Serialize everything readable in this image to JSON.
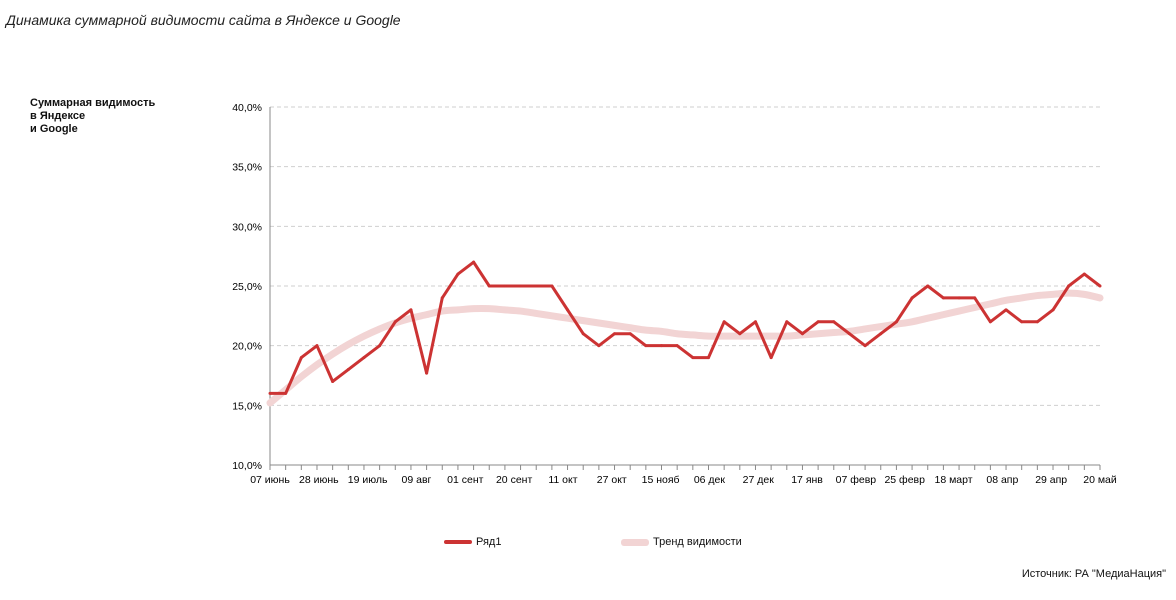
{
  "title": "Динамика суммарной видимости сайта в Яндексе и Google",
  "source": "Источник: РА \"МедиаНация\"",
  "colors": {
    "series": "#cc3333",
    "trend": "#f2d4d4",
    "grid": "#cfcfcf",
    "axis": "#888888"
  },
  "chart_data": {
    "type": "line",
    "ylabel": "Суммарная видимость\nв Яндексе\nи Google",
    "ylim": [
      10,
      40
    ],
    "yticks": [
      10,
      15,
      20,
      25,
      30,
      35,
      40
    ],
    "ytick_labels": [
      "10,0%",
      "15,0%",
      "20,0%",
      "25,0%",
      "30,0%",
      "35,0%",
      "40,0%"
    ],
    "grid": "horizontal dashed",
    "legend_position": "bottom",
    "xtick_labels": [
      "07 июнь",
      "28 июнь",
      "19 июль",
      "09 авг",
      "01 сент",
      "20 сент",
      "11 окт",
      "27 окт",
      "15 нояб",
      "06 дек",
      "27 дек",
      "17 янв",
      "07 февр",
      "25 февр",
      "18 март",
      "08 апр",
      "29 апр",
      "20 май"
    ],
    "series": [
      {
        "name": "Ряд1",
        "values": [
          16,
          16,
          19,
          20,
          17,
          18,
          19,
          20,
          22,
          23,
          17.7,
          24,
          26,
          27,
          25,
          25,
          25,
          25,
          25,
          23,
          21,
          20,
          21,
          21,
          20,
          20,
          20,
          19,
          19,
          22,
          21,
          22,
          19,
          22,
          21,
          22,
          22,
          21,
          20,
          21,
          22,
          24,
          25,
          24,
          24,
          24,
          22,
          23,
          22,
          22,
          23,
          25,
          26,
          25
        ]
      },
      {
        "name": "Тренд видимости",
        "values": [
          15.2,
          16.3,
          17.4,
          18.4,
          19.3,
          20.1,
          20.8,
          21.4,
          21.9,
          22.3,
          22.6,
          22.9,
          23.0,
          23.1,
          23.1,
          23.0,
          22.9,
          22.7,
          22.5,
          22.3,
          22.1,
          21.9,
          21.7,
          21.5,
          21.3,
          21.2,
          21.0,
          20.9,
          20.8,
          20.8,
          20.8,
          20.8,
          20.8,
          20.8,
          20.9,
          21.0,
          21.1,
          21.2,
          21.4,
          21.6,
          21.8,
          22.0,
          22.3,
          22.6,
          22.9,
          23.2,
          23.5,
          23.8,
          24.0,
          24.2,
          24.3,
          24.4,
          24.3,
          24.0
        ]
      }
    ]
  }
}
